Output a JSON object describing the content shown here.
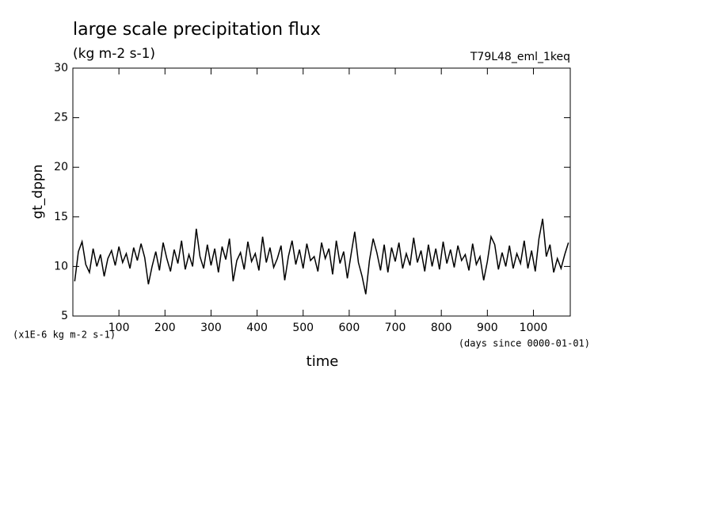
{
  "chart_data": {
    "type": "line",
    "title": "large scale precipitation flux",
    "subtitle": "(kg m-2 s-1)",
    "annotation": "T79L48_eml_1keq",
    "ylabel": "gt_dppn",
    "xlabel": "time",
    "yunit": "(x1E-6 kg m-2 s-1)",
    "xunit": "(days since 0000-01-01)",
    "color": "#000000",
    "xlim": [
      0,
      1080
    ],
    "xticks": [
      100,
      200,
      300,
      400,
      500,
      600,
      700,
      800,
      900,
      1000
    ],
    "ylim": [
      5,
      30
    ],
    "yticks": [
      5,
      10,
      15,
      20,
      25,
      30
    ],
    "x": [
      4,
      12,
      20,
      28,
      36,
      44,
      52,
      60,
      68,
      76,
      84,
      92,
      100,
      108,
      116,
      124,
      132,
      140,
      148,
      156,
      164,
      172,
      180,
      188,
      196,
      204,
      212,
      220,
      228,
      236,
      244,
      252,
      260,
      268,
      276,
      284,
      292,
      300,
      308,
      316,
      324,
      332,
      340,
      348,
      356,
      364,
      372,
      380,
      388,
      396,
      404,
      412,
      420,
      428,
      436,
      444,
      452,
      460,
      468,
      476,
      484,
      492,
      500,
      508,
      516,
      524,
      532,
      540,
      548,
      556,
      564,
      572,
      580,
      588,
      596,
      604,
      612,
      620,
      628,
      636,
      644,
      652,
      660,
      668,
      676,
      684,
      692,
      700,
      708,
      716,
      724,
      732,
      740,
      748,
      756,
      764,
      772,
      780,
      788,
      796,
      804,
      812,
      820,
      828,
      836,
      844,
      852,
      860,
      868,
      876,
      884,
      892,
      900,
      908,
      916,
      924,
      932,
      940,
      948,
      956,
      964,
      972,
      980,
      988,
      996,
      1004,
      1012,
      1020,
      1028,
      1036,
      1044,
      1052,
      1060,
      1068,
      1076
    ],
    "values": [
      8.5,
      11.5,
      12.5,
      10.2,
      9.4,
      11.8,
      10.0,
      11.2,
      9.0,
      10.8,
      11.6,
      10.1,
      12.0,
      10.4,
      11.3,
      9.8,
      11.9,
      10.6,
      12.3,
      10.9,
      8.2,
      10.0,
      11.5,
      9.6,
      12.4,
      10.8,
      9.5,
      11.7,
      10.3,
      12.6,
      9.7,
      11.2,
      10.0,
      13.8,
      11.0,
      9.8,
      12.2,
      10.1,
      11.8,
      9.4,
      12.0,
      10.7,
      12.8,
      8.5,
      10.6,
      11.4,
      9.7,
      12.5,
      10.5,
      11.3,
      9.6,
      13.0,
      10.4,
      11.9,
      9.9,
      10.8,
      12.1,
      8.6,
      11.0,
      12.6,
      10.2,
      11.7,
      9.8,
      12.3,
      10.6,
      11.0,
      9.5,
      12.4,
      10.8,
      11.8,
      9.2,
      12.6,
      10.3,
      11.5,
      8.8,
      11.2,
      13.5,
      10.4,
      9.0,
      7.2,
      10.6,
      12.8,
      11.4,
      9.6,
      12.2,
      9.4,
      11.9,
      10.5,
      12.4,
      9.8,
      11.3,
      10.1,
      12.9,
      10.4,
      11.6,
      9.5,
      12.2,
      10.0,
      11.8,
      9.7,
      12.5,
      10.3,
      11.7,
      9.9,
      12.1,
      10.6,
      11.2,
      9.6,
      12.3,
      10.2,
      11.0,
      8.6,
      10.5,
      13.0,
      12.2,
      9.7,
      11.4,
      10.0,
      12.1,
      9.8,
      11.3,
      10.3,
      12.6,
      9.8,
      11.6,
      9.5,
      12.8,
      14.8,
      11.0,
      12.2,
      9.4,
      10.8,
      9.8,
      11.2,
      12.4
    ]
  }
}
